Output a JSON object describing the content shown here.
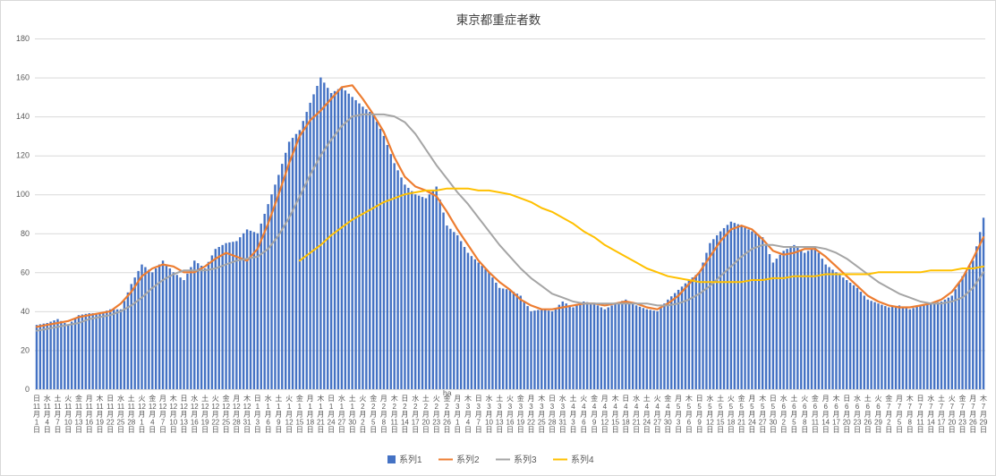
{
  "annotation": {
    "text": "ha"
  },
  "colors": {
    "bar": "#4472C4",
    "series2": "#ED7D31",
    "series3": "#A5A5A5",
    "series4": "#FFC000",
    "grid": "#D9D9D9",
    "text": "#595959",
    "title": "#404040",
    "background": "#FFFFFF"
  },
  "chart_data": {
    "type": "bar",
    "subtype": "combo-bar-line",
    "title": "東京都重症者数",
    "xlabel": "",
    "ylabel": "",
    "ylim": [
      0,
      180
    ],
    "y_ticks": [
      0,
      20,
      40,
      60,
      80,
      100,
      120,
      140,
      160,
      180
    ],
    "grid": "horizontal",
    "legend_position": "bottom",
    "note": "Daily bars from 11月1日 to 7月29日; values estimated at the 3-day x-axis tick marks, intermediate daily bars interpolated.",
    "x": {
      "weekdays": [
        "日",
        "水",
        "土",
        "火",
        "金",
        "月",
        "木",
        "日",
        "水",
        "土",
        "火",
        "金",
        "月",
        "木",
        "日",
        "水",
        "土",
        "火",
        "金",
        "月",
        "木",
        "日",
        "水",
        "土",
        "火",
        "金",
        "月",
        "木",
        "日",
        "水",
        "土",
        "火",
        "金",
        "月",
        "木",
        "日",
        "水",
        "土",
        "火",
        "金",
        "月",
        "木",
        "日",
        "水",
        "土",
        "火",
        "金",
        "月",
        "木",
        "日",
        "水",
        "土",
        "火",
        "金",
        "月",
        "木",
        "日",
        "水",
        "土",
        "火",
        "金",
        "月",
        "木",
        "日",
        "水",
        "土",
        "火",
        "金",
        "月",
        "木",
        "日",
        "水",
        "土",
        "火",
        "金",
        "月",
        "木",
        "日",
        "水",
        "土",
        "火",
        "金",
        "月",
        "木",
        "日",
        "水",
        "土",
        "火",
        "金",
        "月",
        "木"
      ],
      "months": [
        "11",
        "11",
        "11",
        "11",
        "11",
        "11",
        "11",
        "11",
        "11",
        "11",
        "12",
        "12",
        "12",
        "12",
        "12",
        "12",
        "12",
        "12",
        "12",
        "12",
        "12",
        "1",
        "1",
        "1",
        "1",
        "1",
        "1",
        "1",
        "1",
        "1",
        "1",
        "2",
        "2",
        "2",
        "2",
        "2",
        "2",
        "2",
        "2",
        "2",
        "3",
        "3",
        "3",
        "3",
        "3",
        "3",
        "3",
        "3",
        "3",
        "3",
        "3",
        "4",
        "4",
        "4",
        "4",
        "4",
        "4",
        "4",
        "4",
        "4",
        "4",
        "5",
        "5",
        "5",
        "5",
        "5",
        "5",
        "5",
        "5",
        "5",
        "5",
        "6",
        "6",
        "6",
        "6",
        "6",
        "6",
        "6",
        "6",
        "6",
        "6",
        "7",
        "7",
        "7",
        "7",
        "7",
        "7",
        "7",
        "7",
        "7",
        "7"
      ],
      "days": [
        "1",
        "4",
        "7",
        "10",
        "13",
        "16",
        "19",
        "22",
        "25",
        "28",
        "1",
        "4",
        "7",
        "10",
        "13",
        "16",
        "19",
        "22",
        "25",
        "28",
        "31",
        "3",
        "6",
        "9",
        "12",
        "15",
        "18",
        "21",
        "24",
        "27",
        "30",
        "2",
        "5",
        "8",
        "11",
        "14",
        "17",
        "20",
        "23",
        "26",
        "1",
        "4",
        "7",
        "10",
        "13",
        "16",
        "19",
        "22",
        "25",
        "28",
        "31",
        "3",
        "6",
        "9",
        "12",
        "15",
        "18",
        "21",
        "24",
        "27",
        "30",
        "3",
        "6",
        "9",
        "12",
        "15",
        "18",
        "21",
        "24",
        "27",
        "30",
        "2",
        "5",
        "8",
        "11",
        "14",
        "17",
        "20",
        "23",
        "26",
        "29",
        "2",
        "5",
        "8",
        "11",
        "14",
        "17",
        "20",
        "23",
        "26",
        "29"
      ],
      "month_suffix": "月",
      "day_suffix": "日"
    },
    "series": [
      {
        "name": "系列1",
        "type": "bar",
        "color": "#4472C4",
        "values": [
          33,
          34,
          36,
          33,
          38,
          39,
          39,
          41,
          41,
          54,
          64,
          60,
          66,
          60,
          56,
          66,
          62,
          72,
          75,
          76,
          82,
          80,
          95,
          110,
          127,
          133,
          147,
          160,
          152,
          155,
          150,
          145,
          141,
          130,
          116,
          105,
          100,
          98,
          104,
          84,
          79,
          70,
          65,
          60,
          52,
          51,
          48,
          40,
          41,
          40,
          45,
          42,
          45,
          44,
          41,
          44,
          46,
          43,
          41,
          40,
          46,
          51,
          56,
          60,
          75,
          81,
          86,
          84,
          81,
          78,
          65,
          71,
          74,
          70,
          73,
          64,
          60,
          56,
          52,
          46,
          44,
          42,
          43,
          41,
          43,
          44,
          45,
          48,
          58,
          66,
          88
        ]
      },
      {
        "name": "系列2",
        "type": "line",
        "color": "#ED7D31",
        "values": [
          32,
          33,
          34,
          35,
          37,
          38,
          39,
          40,
          44,
          50,
          58,
          62,
          64,
          63,
          60,
          60,
          63,
          67,
          70,
          68,
          66,
          72,
          85,
          100,
          116,
          130,
          138,
          143,
          149,
          155,
          156,
          149,
          141,
          132,
          119,
          109,
          104,
          102,
          99,
          91,
          82,
          74,
          66,
          60,
          55,
          51,
          46,
          43,
          41,
          41,
          42,
          43,
          44,
          44,
          43,
          44,
          45,
          44,
          42,
          41,
          44,
          48,
          54,
          60,
          68,
          76,
          82,
          84,
          82,
          77,
          71,
          69,
          70,
          72,
          72,
          68,
          63,
          58,
          53,
          48,
          45,
          43,
          42,
          42,
          43,
          44,
          46,
          50,
          57,
          67,
          78
        ]
      },
      {
        "name": "系列3",
        "type": "line",
        "color": "#A5A5A5",
        "values": [
          30,
          31,
          32,
          33,
          34,
          36,
          37,
          38,
          40,
          43,
          47,
          52,
          56,
          59,
          61,
          61,
          61,
          62,
          64,
          66,
          67,
          68,
          72,
          79,
          88,
          99,
          110,
          120,
          128,
          135,
          140,
          141,
          141,
          141,
          140,
          137,
          131,
          123,
          115,
          108,
          101,
          95,
          88,
          81,
          74,
          68,
          62,
          57,
          53,
          49,
          47,
          45,
          44,
          44,
          44,
          44,
          44,
          44,
          44,
          43,
          43,
          44,
          46,
          49,
          53,
          58,
          63,
          68,
          72,
          74,
          74,
          73,
          73,
          73,
          73,
          72,
          70,
          67,
          63,
          59,
          55,
          52,
          49,
          47,
          45,
          44,
          44,
          45,
          47,
          52,
          60
        ]
      },
      {
        "name": "系列4",
        "type": "line",
        "color": "#FFC000",
        "values": [
          null,
          null,
          null,
          null,
          null,
          null,
          null,
          null,
          null,
          null,
          null,
          null,
          null,
          null,
          null,
          null,
          null,
          null,
          null,
          null,
          null,
          null,
          null,
          null,
          null,
          66,
          70,
          74,
          79,
          83,
          87,
          90,
          93,
          96,
          98,
          100,
          101,
          102,
          102,
          103,
          103,
          103,
          102,
          102,
          101,
          100,
          98,
          96,
          93,
          91,
          88,
          85,
          81,
          78,
          74,
          71,
          68,
          65,
          62,
          60,
          58,
          57,
          56,
          55,
          55,
          55,
          55,
          55,
          56,
          56,
          57,
          57,
          58,
          58,
          58,
          59,
          59,
          59,
          59,
          59,
          60,
          60,
          60,
          60,
          60,
          61,
          61,
          61,
          62,
          62,
          63
        ]
      }
    ]
  }
}
